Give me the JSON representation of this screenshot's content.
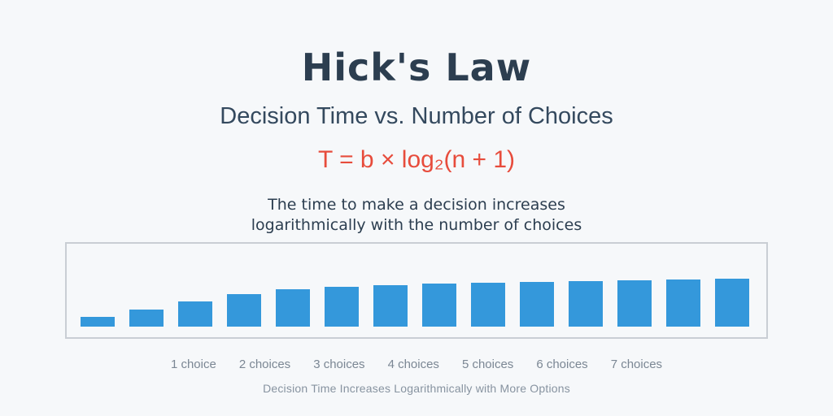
{
  "page": {
    "title": "Hick's Law",
    "subtitle": "Decision Time vs. Number of Choices",
    "formula": "T = b × log₂(n + 1)",
    "description": "The time to make a decision increases\nlogarithmically with the number of choices",
    "caption": "Decision Time Increases Logarithmically with More Options"
  },
  "colors": {
    "background": "#f6f8fa",
    "title": "#2c3e50",
    "subtitle": "#34495e",
    "formula": "#e74c3c",
    "bar": "#3498db",
    "axis_label": "#7b8794",
    "caption": "#8793a0",
    "chart_border": "#c9ced4"
  },
  "chart_data": {
    "type": "bar",
    "title": "Decision Time vs. Number of Choices",
    "caption": "Decision Time Increases Logarithmically with More Options",
    "x_tick_labels": [
      "1 choice",
      "2 choices",
      "3 choices",
      "4 choices",
      "5 choices",
      "6 choices",
      "7 choices"
    ],
    "bar_count": 14,
    "values": [
      12,
      21,
      31,
      40,
      46,
      49,
      51,
      53,
      54,
      55,
      56,
      57,
      58,
      59
    ],
    "value_meaning": "relative decision time (bar heights read off chart, arbitrary units)",
    "bar_color": "#3498db",
    "grid": false,
    "legend": false,
    "axes_drawn": false
  }
}
